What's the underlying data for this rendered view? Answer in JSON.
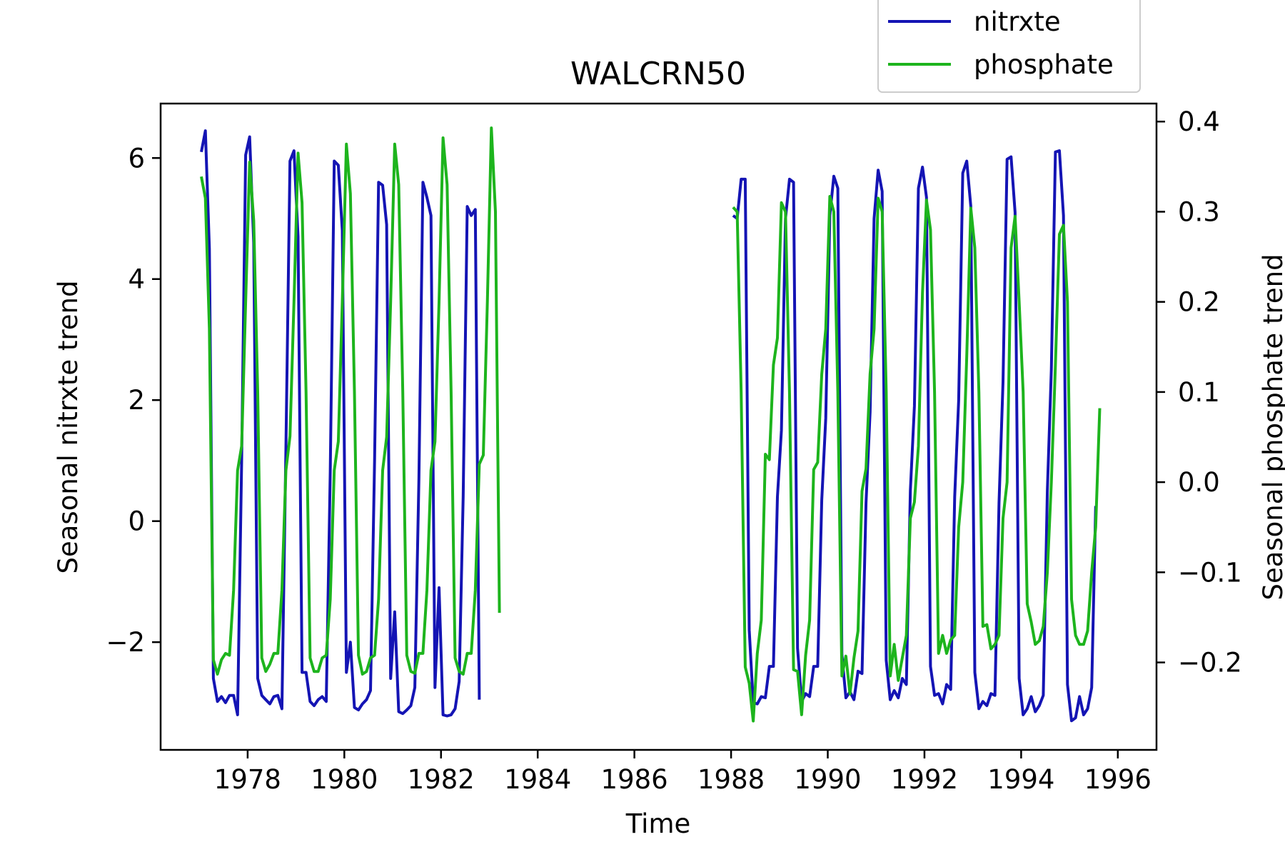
{
  "chart_data": {
    "type": "line",
    "title": "WALCRN50",
    "xlabel": "Time",
    "ylabel_left": "Seasonal nitrxte trend",
    "ylabel_right": "Seasonal phosphate trend",
    "x_unit": "year",
    "xlim": [
      1976.2,
      1996.8
    ],
    "ylim_left": [
      -3.78,
      6.9
    ],
    "ylim_right": [
      -0.297,
      0.42
    ],
    "x_ticks": [
      1978,
      1980,
      1982,
      1984,
      1986,
      1988,
      1990,
      1992,
      1994,
      1996
    ],
    "y_ticks_left": [
      -2,
      0,
      2,
      4,
      6
    ],
    "y_ticks_right": [
      -0.2,
      -0.1,
      0.0,
      0.1,
      0.2,
      0.3,
      0.4
    ],
    "y_tick_labels_left": [
      "−2",
      "0",
      "2",
      "4",
      "6"
    ],
    "y_tick_labels_right": [
      "−0.2",
      "−0.1",
      "0.0",
      "0.1",
      "0.2",
      "0.3",
      "0.4"
    ],
    "grid": false,
    "legend_position": "top-right",
    "series": [
      {
        "name": "nitrxte",
        "axis": "left",
        "color": "#1414b4",
        "segments": [
          {
            "start": 1977.042,
            "step": 0.0833333,
            "values": [
              6.1,
              6.45,
              4.5,
              -2.6,
              -2.98,
              -2.9,
              -3.0,
              -2.88,
              -2.88,
              -3.2,
              1.0,
              6.05,
              6.35,
              4.6,
              -2.6,
              -2.88,
              -2.95,
              -3.02,
              -2.9,
              -2.88,
              -3.1,
              1.2,
              5.95,
              6.12,
              4.7,
              -2.5,
              -2.5,
              -2.98,
              -3.05,
              -2.95,
              -2.9,
              -2.98,
              0.8,
              5.95,
              5.88,
              4.8,
              -2.5,
              -2.0,
              -3.08,
              -3.12,
              -3.02,
              -2.95,
              -2.8,
              1.0,
              5.6,
              5.55,
              4.9,
              -2.6,
              -1.5,
              -3.15,
              -3.18,
              -3.12,
              -3.05,
              -2.75,
              0.7,
              5.6,
              5.35,
              5.05,
              -2.75,
              -1.1,
              -3.2,
              -3.22,
              -3.2,
              -3.1,
              -2.65,
              0.4,
              5.2,
              5.05,
              5.15,
              -2.95
            ]
          },
          {
            "start": 1988.042,
            "step": 0.0833333,
            "values": [
              5.05,
              5.0,
              5.65,
              5.65,
              -1.8,
              -3.0,
              -3.02,
              -2.9,
              -2.92,
              -2.4,
              -2.4,
              0.4,
              1.5,
              5.0,
              5.65,
              5.6,
              -2.1,
              -2.98,
              -2.85,
              -2.9,
              -2.4,
              -2.4,
              0.35,
              1.7,
              5.05,
              5.7,
              5.5,
              -2.2,
              -2.92,
              -2.82,
              -2.95,
              -2.48,
              -2.52,
              0.3,
              1.8,
              5.0,
              5.8,
              5.45,
              -2.3,
              -2.95,
              -2.8,
              -2.92,
              -2.6,
              -2.7,
              0.5,
              1.9,
              5.5,
              5.85,
              5.35,
              -2.4,
              -2.88,
              -2.85,
              -3.02,
              -2.7,
              -2.78,
              0.4,
              2.0,
              5.75,
              5.95,
              5.2,
              -2.5,
              -3.1,
              -2.98,
              -3.05,
              -2.85,
              -2.88,
              0.3,
              2.3,
              5.98,
              6.02,
              5.1,
              -2.6,
              -3.2,
              -3.1,
              -2.9,
              -3.15,
              -3.05,
              -2.88,
              0.5,
              2.5,
              6.1,
              6.12,
              5.05,
              -2.7,
              -3.3,
              -3.25,
              -2.9,
              -3.2,
              -3.1,
              -2.75,
              0.25
            ]
          }
        ]
      },
      {
        "name": "phosphate",
        "axis": "right",
        "color": "#1db41d",
        "segments": [
          {
            "start": 1977.042,
            "step": 0.0833333,
            "values": [
              0.339,
              0.315,
              0.17,
              -0.197,
              -0.213,
              -0.197,
              -0.19,
              -0.192,
              -0.12,
              0.013,
              0.04,
              0.2,
              0.355,
              0.29,
              0.1,
              -0.195,
              -0.21,
              -0.202,
              -0.19,
              -0.19,
              -0.12,
              0.013,
              0.051,
              0.2,
              0.365,
              0.31,
              0.1,
              -0.195,
              -0.21,
              -0.21,
              -0.195,
              -0.192,
              -0.13,
              0.013,
              0.045,
              0.2,
              0.375,
              0.32,
              0.1,
              -0.192,
              -0.213,
              -0.21,
              -0.195,
              -0.192,
              -0.13,
              0.013,
              0.05,
              0.2,
              0.375,
              0.33,
              0.1,
              -0.192,
              -0.21,
              -0.212,
              -0.19,
              -0.19,
              -0.12,
              0.013,
              0.045,
              0.2,
              0.382,
              0.33,
              0.1,
              -0.195,
              -0.21,
              -0.213,
              -0.19,
              -0.19,
              -0.12,
              0.02,
              0.03,
              0.2,
              0.393,
              0.3,
              -0.145
            ]
          },
          {
            "start": 1988.042,
            "step": 0.0833333,
            "values": [
              0.305,
              0.3,
              0.1,
              -0.205,
              -0.223,
              -0.265,
              -0.19,
              -0.153,
              0.031,
              0.025,
              0.13,
              0.16,
              0.31,
              0.3,
              0.1,
              -0.208,
              -0.21,
              -0.258,
              -0.192,
              -0.153,
              0.014,
              0.022,
              0.12,
              0.17,
              0.317,
              0.3,
              0.1,
              -0.215,
              -0.193,
              -0.235,
              -0.195,
              -0.165,
              -0.01,
              0.015,
              0.12,
              0.17,
              0.315,
              0.3,
              0.1,
              -0.215,
              -0.18,
              -0.22,
              -0.195,
              -0.17,
              -0.04,
              -0.022,
              0.04,
              0.21,
              0.313,
              0.28,
              0.1,
              -0.19,
              -0.17,
              -0.19,
              -0.175,
              -0.17,
              -0.05,
              0.0,
              0.14,
              0.304,
              0.26,
              0.1,
              -0.16,
              -0.158,
              -0.185,
              -0.18,
              -0.17,
              -0.04,
              0.0,
              0.26,
              0.295,
              0.2,
              0.1,
              -0.135,
              -0.155,
              -0.18,
              -0.176,
              -0.16,
              -0.1,
              0.0,
              0.13,
              0.275,
              0.285,
              0.2,
              -0.13,
              -0.17,
              -0.18,
              -0.18,
              -0.165,
              -0.1,
              -0.05,
              0.082
            ]
          }
        ]
      }
    ]
  }
}
